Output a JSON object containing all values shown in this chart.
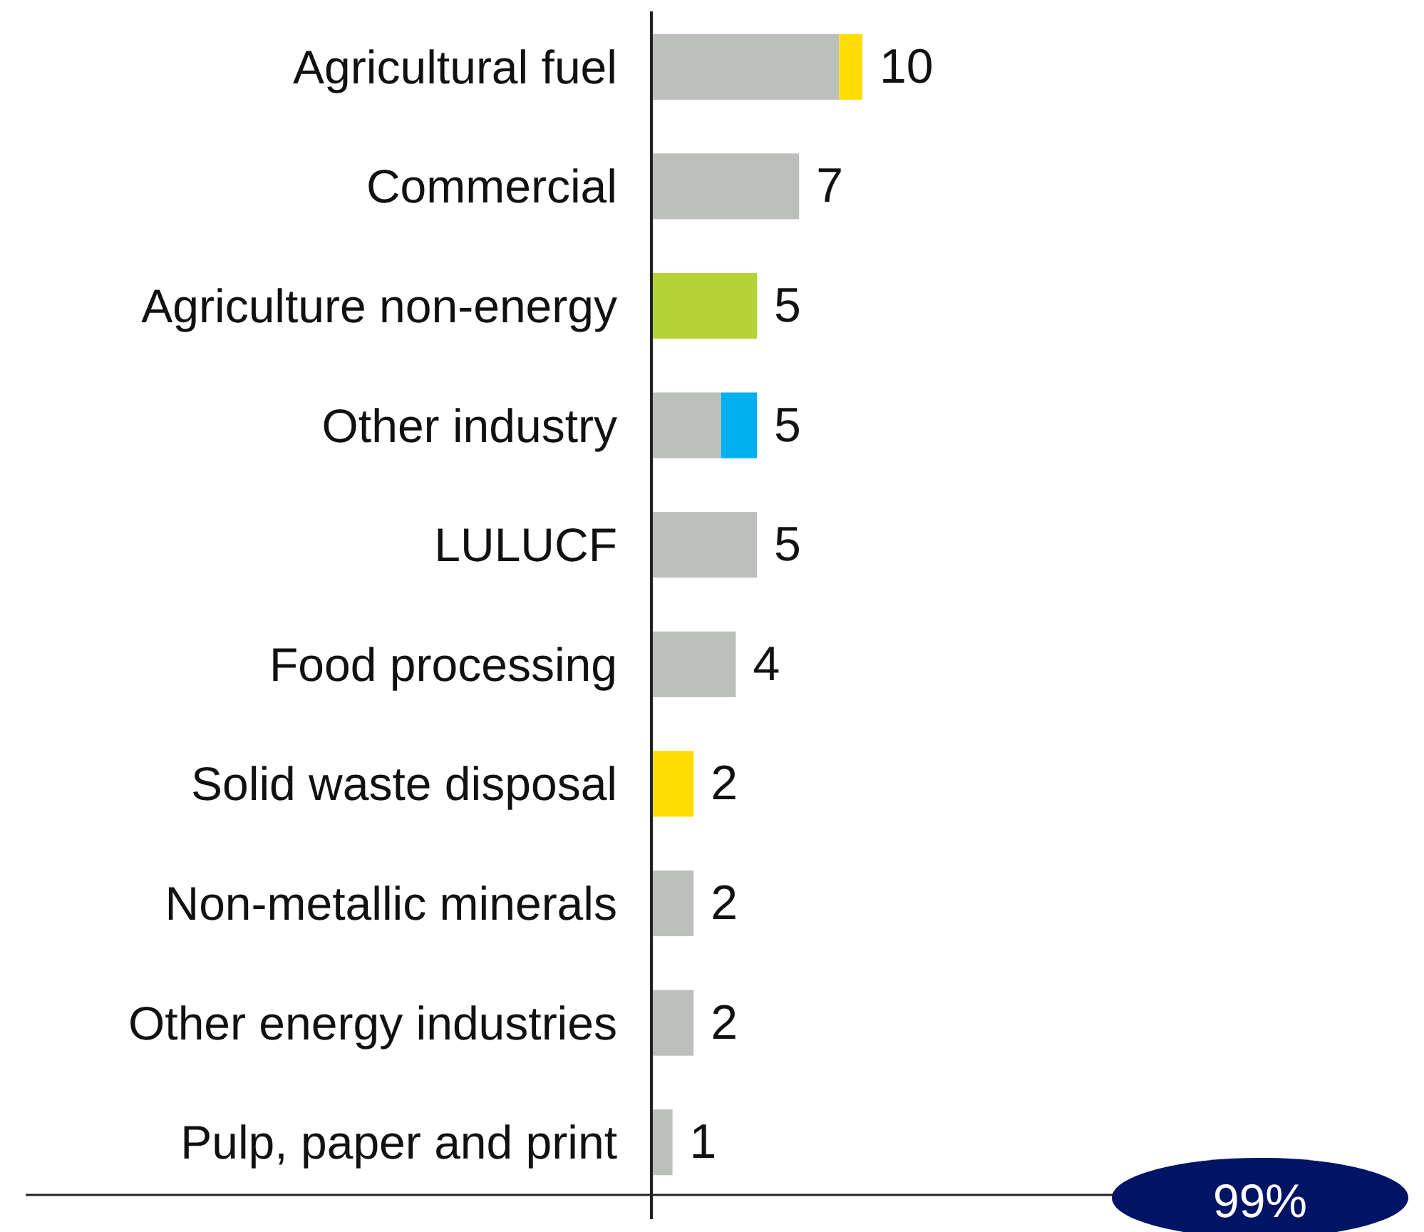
{
  "chart_data": {
    "type": "bar",
    "orientation": "horizontal",
    "stacked": true,
    "categories": [
      "Agricultural fuel",
      "Commercial",
      "Agriculture non-energy",
      "Other industry",
      "LULUCF",
      "Food processing",
      "Solid waste disposal",
      "Non-metallic minerals",
      "Other energy industries",
      "Pulp, paper and print"
    ],
    "series": [
      {
        "color": "#bdbfbc",
        "values": [
          8.9,
          7,
          null,
          3.3,
          5,
          4,
          null,
          2,
          2,
          1
        ],
        "value_labels": [
          null,
          "7",
          null,
          null,
          "5",
          "4",
          null,
          "2",
          "2",
          "1"
        ]
      },
      {
        "color": "#ffdd00",
        "values": [
          1.1,
          null,
          null,
          null,
          null,
          null,
          2,
          null,
          null,
          null
        ],
        "value_labels": [
          null,
          null,
          null,
          null,
          null,
          null,
          "2",
          null,
          null,
          null
        ]
      },
      {
        "color": "#b5d334",
        "values": [
          null,
          null,
          5,
          null,
          null,
          null,
          null,
          null,
          null,
          null
        ],
        "value_labels": [
          null,
          null,
          "5",
          null,
          null,
          null,
          null,
          null,
          null,
          null
        ]
      },
      {
        "color": "#00b0f0",
        "values": [
          null,
          null,
          null,
          1.7,
          null,
          null,
          null,
          null,
          null,
          null
        ]
      }
    ],
    "totals": [
      "10",
      null,
      null,
      "5",
      null,
      null,
      null,
      null,
      null,
      null
    ],
    "tick_labels": "y",
    "annotations": [
      "99%"
    ]
  }
}
